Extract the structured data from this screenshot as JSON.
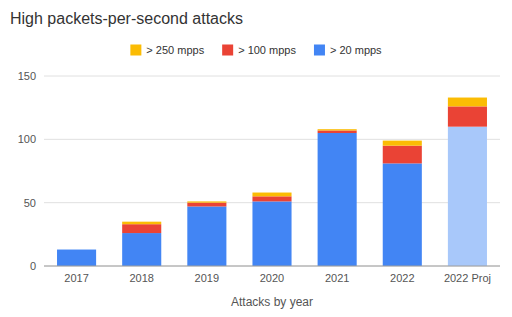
{
  "chart_data": {
    "type": "bar",
    "stacked": true,
    "title": "High packets-per-second attacks",
    "x_label": "Attacks by year",
    "categories": [
      "2017",
      "2018",
      "2019",
      "2020",
      "2021",
      "2022",
      "2022 Proj"
    ],
    "series": [
      {
        "name": "> 20 mpps",
        "color": "#4285f4",
        "colors": [
          "#4285f4",
          "#4285f4",
          "#4285f4",
          "#4285f4",
          "#4285f4",
          "#4285f4",
          "#a8c8fa"
        ],
        "values": [
          13,
          26,
          47,
          51,
          105,
          81,
          110
        ]
      },
      {
        "name": "> 100 mpps",
        "color": "#ea4335",
        "values": [
          0,
          7,
          3,
          4,
          2,
          14,
          16
        ]
      },
      {
        "name": "> 250 mpps",
        "color": "#fbbc04",
        "values": [
          0,
          2,
          1,
          3,
          1,
          4,
          7
        ]
      }
    ],
    "ylim": [
      0,
      150
    ],
    "yticks": [
      0,
      50,
      100,
      150
    ],
    "grid": true,
    "legend": "top"
  }
}
